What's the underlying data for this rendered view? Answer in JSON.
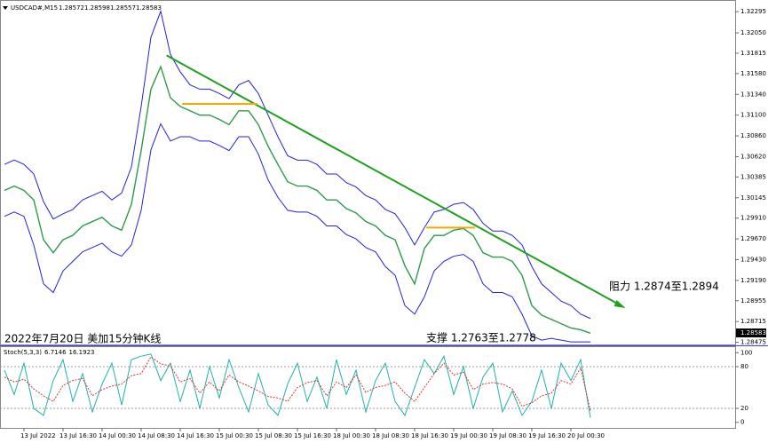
{
  "chart_data": [
    {
      "type": "line",
      "title": "USDCAD#,M15",
      "ohlc": [
        1.28572,
        1.28598,
        1.28557,
        1.28583
      ],
      "ylim": [
        1.2845,
        1.3243
      ],
      "yticks": [
        1.32295,
        {
          "value": 1.3205,
          "label": "1.32050"
        },
        1.31815,
        {
          "value": 1.3158,
          "label": "1.31580"
        },
        {
          "value": 1.3134,
          "label": "1.31340"
        },
        {
          "value": 1.311,
          "label": "1.31100"
        },
        {
          "value": 1.3086,
          "label": "1.30860"
        },
        {
          "value": 1.3062,
          "label": "1.30620"
        },
        1.30385,
        1.30145,
        {
          "value": 1.2991,
          "label": "1.29910"
        },
        {
          "value": 1.2967,
          "label": "1.29670"
        },
        {
          "value": 1.2943,
          "label": "1.29430"
        },
        {
          "value": 1.2919,
          "label": "1.29190"
        },
        1.28955,
        1.28715,
        1.28475
      ],
      "series": [
        {
          "color": "#2e9a4a",
          "values": [
            1.3023,
            1.3028,
            1.3023,
            1.3012,
            1.2966,
            1.2951,
            1.2966,
            1.2971,
            1.2982,
            1.2987,
            1.2992,
            1.2982,
            1.2977,
            1.3007,
            1.3069,
            1.314,
            1.3166,
            1.313,
            1.312,
            1.3115,
            1.311,
            1.311,
            1.3105,
            1.3099,
            1.3115,
            1.3115,
            1.3099,
            1.3074,
            1.3053,
            1.3033,
            1.3028,
            1.3028,
            1.3023,
            1.3012,
            1.3012,
            1.3002,
            1.2997,
            1.2987,
            1.2982,
            1.2971,
            1.2966,
            1.2936,
            1.2915,
            1.2956,
            1.2971,
            1.2971,
            1.2977,
            1.2979,
            1.2971,
            1.2951,
            1.2946,
            1.2946,
            1.2941,
            1.2925,
            1.289,
            1.2879,
            1.2874,
            1.2869,
            1.2864,
            1.2862,
            1.2858
          ]
        },
        {
          "color": "#2222dd",
          "values": [
            1.3053,
            1.3058,
            1.3053,
            1.3042,
            1.301,
            1.299,
            1.2996,
            1.3001,
            1.3012,
            1.3017,
            1.3022,
            1.3012,
            1.302,
            1.305,
            1.312,
            1.32,
            1.323,
            1.318,
            1.316,
            1.3145,
            1.314,
            1.314,
            1.3135,
            1.3129,
            1.3145,
            1.315,
            1.3135,
            1.311,
            1.3085,
            1.3063,
            1.3058,
            1.3058,
            1.3053,
            1.3042,
            1.3042,
            1.3032,
            1.3027,
            1.3017,
            1.3012,
            1.3001,
            1.2996,
            1.298,
            1.296,
            1.298,
            1.2998,
            1.3001,
            1.3007,
            1.3009,
            1.3001,
            1.2985,
            1.2976,
            1.2976,
            1.2971,
            1.296,
            1.2935,
            1.2915,
            1.2905,
            1.2895,
            1.289,
            1.288,
            1.2875
          ]
        },
        {
          "color": "#2222dd",
          "values": [
            1.2993,
            1.2998,
            1.2993,
            1.296,
            1.2915,
            1.2905,
            1.293,
            1.2941,
            1.2952,
            1.2957,
            1.2962,
            1.2952,
            1.2947,
            1.296,
            1.3,
            1.307,
            1.31,
            1.308,
            1.3085,
            1.3085,
            1.308,
            1.308,
            1.3075,
            1.3069,
            1.3085,
            1.3085,
            1.3065,
            1.3035,
            1.3015,
            1.3,
            1.2998,
            1.2998,
            1.2993,
            1.2982,
            1.2982,
            1.2972,
            1.2967,
            1.2957,
            1.2952,
            1.2935,
            1.2925,
            1.289,
            1.288,
            1.29,
            1.293,
            1.2941,
            1.2947,
            1.2949,
            1.2941,
            1.2915,
            1.2905,
            1.2905,
            1.29,
            1.288,
            1.2855,
            1.285,
            1.2852,
            1.285,
            1.2848,
            1.2848,
            1.2848
          ]
        }
      ],
      "trendline": {
        "color": "#1fa01f",
        "x": [
          16.6,
          63.6
        ],
        "y": [
          1.3179,
          1.2887
        ]
      },
      "levels": [
        {
          "color": "#f5a800",
          "value": 1.3123,
          "x": [
            18.2,
            25.9
          ]
        },
        {
          "color": "#f5a800",
          "value": 1.298,
          "x": [
            43.2,
            48.2
          ]
        }
      ],
      "annotations": [
        "阻力 1.2874至1.2894",
        "支撑 1.2763至1.2778",
        "2022年7月20日 美加15分钟K线"
      ]
    },
    {
      "type": "line",
      "title": "Stoch(5,3,3)",
      "categories": [
        null,
        null,
        "13 Jul 2022",
        null,
        null,
        null,
        "13 Jul 16:30",
        null,
        null,
        null,
        "14 Jul 00:30",
        null,
        null,
        null,
        "14 Jul 08:30",
        null,
        null,
        null,
        "14 Jul 16:30",
        null,
        null,
        null,
        "15 Jul 00:30",
        null,
        null,
        null,
        "15 Jul 08:30",
        null,
        null,
        null,
        "15 Jul 16:30",
        null,
        null,
        null,
        "18 Jul 00:30",
        null,
        null,
        null,
        "18 Jul 08:30",
        null,
        null,
        null,
        "18 Jul 16:30",
        null,
        null,
        null,
        "19 Jul 00:30",
        null,
        null,
        null,
        "19 Jul 08:30",
        null,
        null,
        null,
        "19 Jul 16:30",
        null,
        null,
        null,
        "20 Jul 00:30",
        null,
        null
      ],
      "ylim": [
        -8,
        108
      ],
      "yticks": [
        100,
        80,
        20,
        0
      ],
      "series": [
        {
          "color": "#20b2aa",
          "values": [
            75,
            40,
            85,
            20,
            10,
            60,
            90,
            30,
            70,
            15,
            55,
            85,
            25,
            90,
            95,
            98,
            60,
            85,
            30,
            75,
            20,
            80,
            35,
            90,
            50,
            15,
            70,
            25,
            10,
            55,
            85,
            30,
            65,
            20,
            90,
            40,
            75,
            15,
            60,
            85,
            30,
            10,
            50,
            90,
            70,
            95,
            40,
            80,
            20,
            65,
            85,
            15,
            45,
            10,
            30,
            75,
            20,
            85,
            60,
            90,
            6.7146
          ]
        },
        {
          "color": "#e03030",
          "values": [
            65,
            58,
            62,
            48,
            38,
            30,
            53,
            60,
            63,
            38,
            47,
            52,
            55,
            67,
            70,
            94,
            84,
            81,
            58,
            63,
            42,
            58,
            45,
            68,
            58,
            52,
            45,
            37,
            35,
            30,
            50,
            57,
            60,
            38,
            58,
            50,
            68,
            43,
            50,
            53,
            58,
            42,
            30,
            50,
            70,
            85,
            68,
            72,
            47,
            55,
            57,
            55,
            48,
            23,
            28,
            38,
            42,
            60,
            55,
            78,
            16.1923
          ]
        }
      ]
    }
  ]
}
